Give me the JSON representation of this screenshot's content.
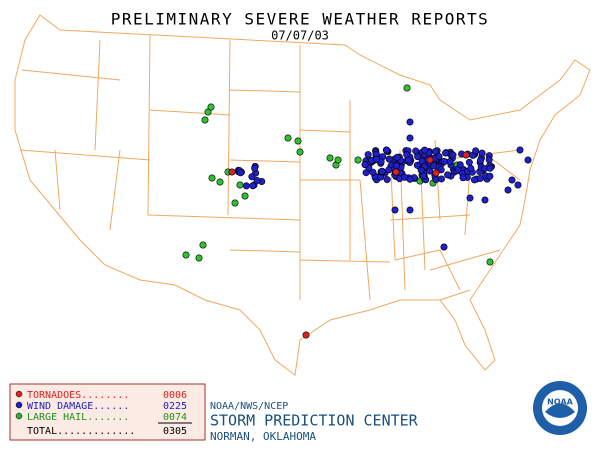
{
  "header": {
    "title": "PRELIMINARY SEVERE WEATHER REPORTS",
    "date": "07/07/03"
  },
  "legend": {
    "entries": [
      {
        "label": "TORNADOES........",
        "count": "0006"
      },
      {
        "label": "WIND DAMAGE......",
        "count": "0225"
      },
      {
        "label": "LARGE HAIL.......",
        "count": "0074"
      }
    ],
    "total": {
      "label": "TOTAL.............",
      "count": "0305"
    }
  },
  "footer": {
    "agency": "NOAA/NWS/NCEP",
    "center": "STORM PREDICTION CENTER",
    "location": "NORMAN, OKLAHOMA"
  },
  "logo": {
    "text": "NOAA"
  }
}
